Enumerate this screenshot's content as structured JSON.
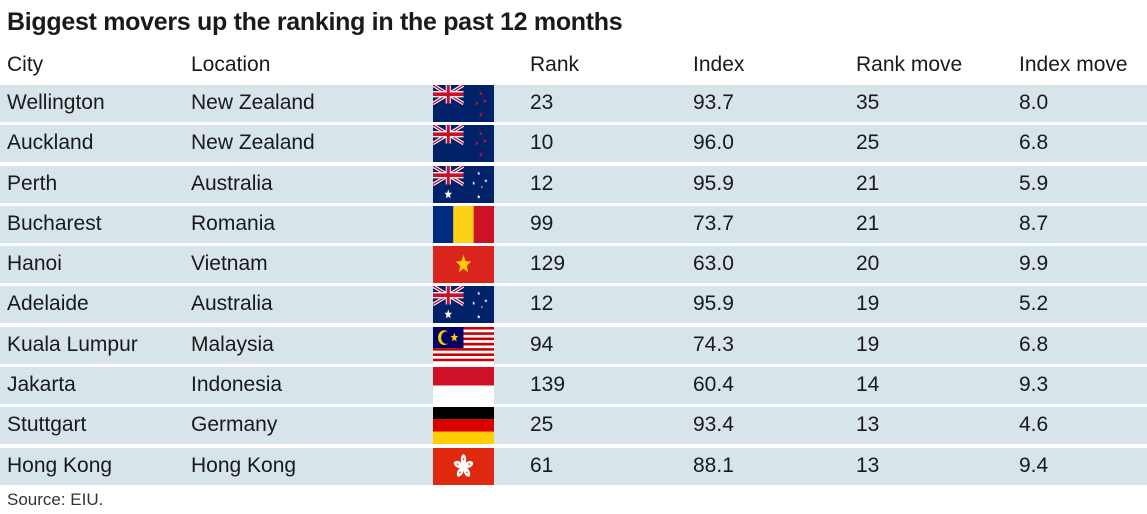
{
  "title": "Biggest movers up the ranking in the past 12 months",
  "columns": {
    "city": "City",
    "location": "Location",
    "rank": "Rank",
    "index": "Index",
    "rank_move": "Rank move",
    "index_move": "Index move"
  },
  "rows": [
    {
      "city": "Wellington",
      "location": "New Zealand",
      "flag": "new-zealand",
      "rank": "23",
      "index": "93.7",
      "rank_move": "35",
      "index_move": "8.0"
    },
    {
      "city": "Auckland",
      "location": "New Zealand",
      "flag": "new-zealand",
      "rank": "10",
      "index": "96.0",
      "rank_move": "25",
      "index_move": "6.8"
    },
    {
      "city": "Perth",
      "location": "Australia",
      "flag": "australia",
      "rank": "12",
      "index": "95.9",
      "rank_move": "21",
      "index_move": "5.9"
    },
    {
      "city": "Bucharest",
      "location": "Romania",
      "flag": "romania",
      "rank": "99",
      "index": "73.7",
      "rank_move": "21",
      "index_move": "8.7"
    },
    {
      "city": "Hanoi",
      "location": "Vietnam",
      "flag": "vietnam",
      "rank": "129",
      "index": "63.0",
      "rank_move": "20",
      "index_move": "9.9"
    },
    {
      "city": "Adelaide",
      "location": "Australia",
      "flag": "australia",
      "rank": "12",
      "index": "95.9",
      "rank_move": "19",
      "index_move": "5.2"
    },
    {
      "city": "Kuala Lumpur",
      "location": "Malaysia",
      "flag": "malaysia",
      "rank": "94",
      "index": "74.3",
      "rank_move": "19",
      "index_move": "6.8"
    },
    {
      "city": "Jakarta",
      "location": "Indonesia",
      "flag": "indonesia",
      "rank": "139",
      "index": "60.4",
      "rank_move": "14",
      "index_move": "9.3"
    },
    {
      "city": "Stuttgart",
      "location": "Germany",
      "flag": "germany",
      "rank": "25",
      "index": "93.4",
      "rank_move": "13",
      "index_move": "4.6"
    },
    {
      "city": "Hong Kong",
      "location": "Hong Kong",
      "flag": "hong-kong",
      "rank": "61",
      "index": "88.1",
      "rank_move": "13",
      "index_move": "9.4"
    }
  ],
  "source": "Source: EIU.",
  "colors": {
    "row_background": "#d7e4ea"
  }
}
